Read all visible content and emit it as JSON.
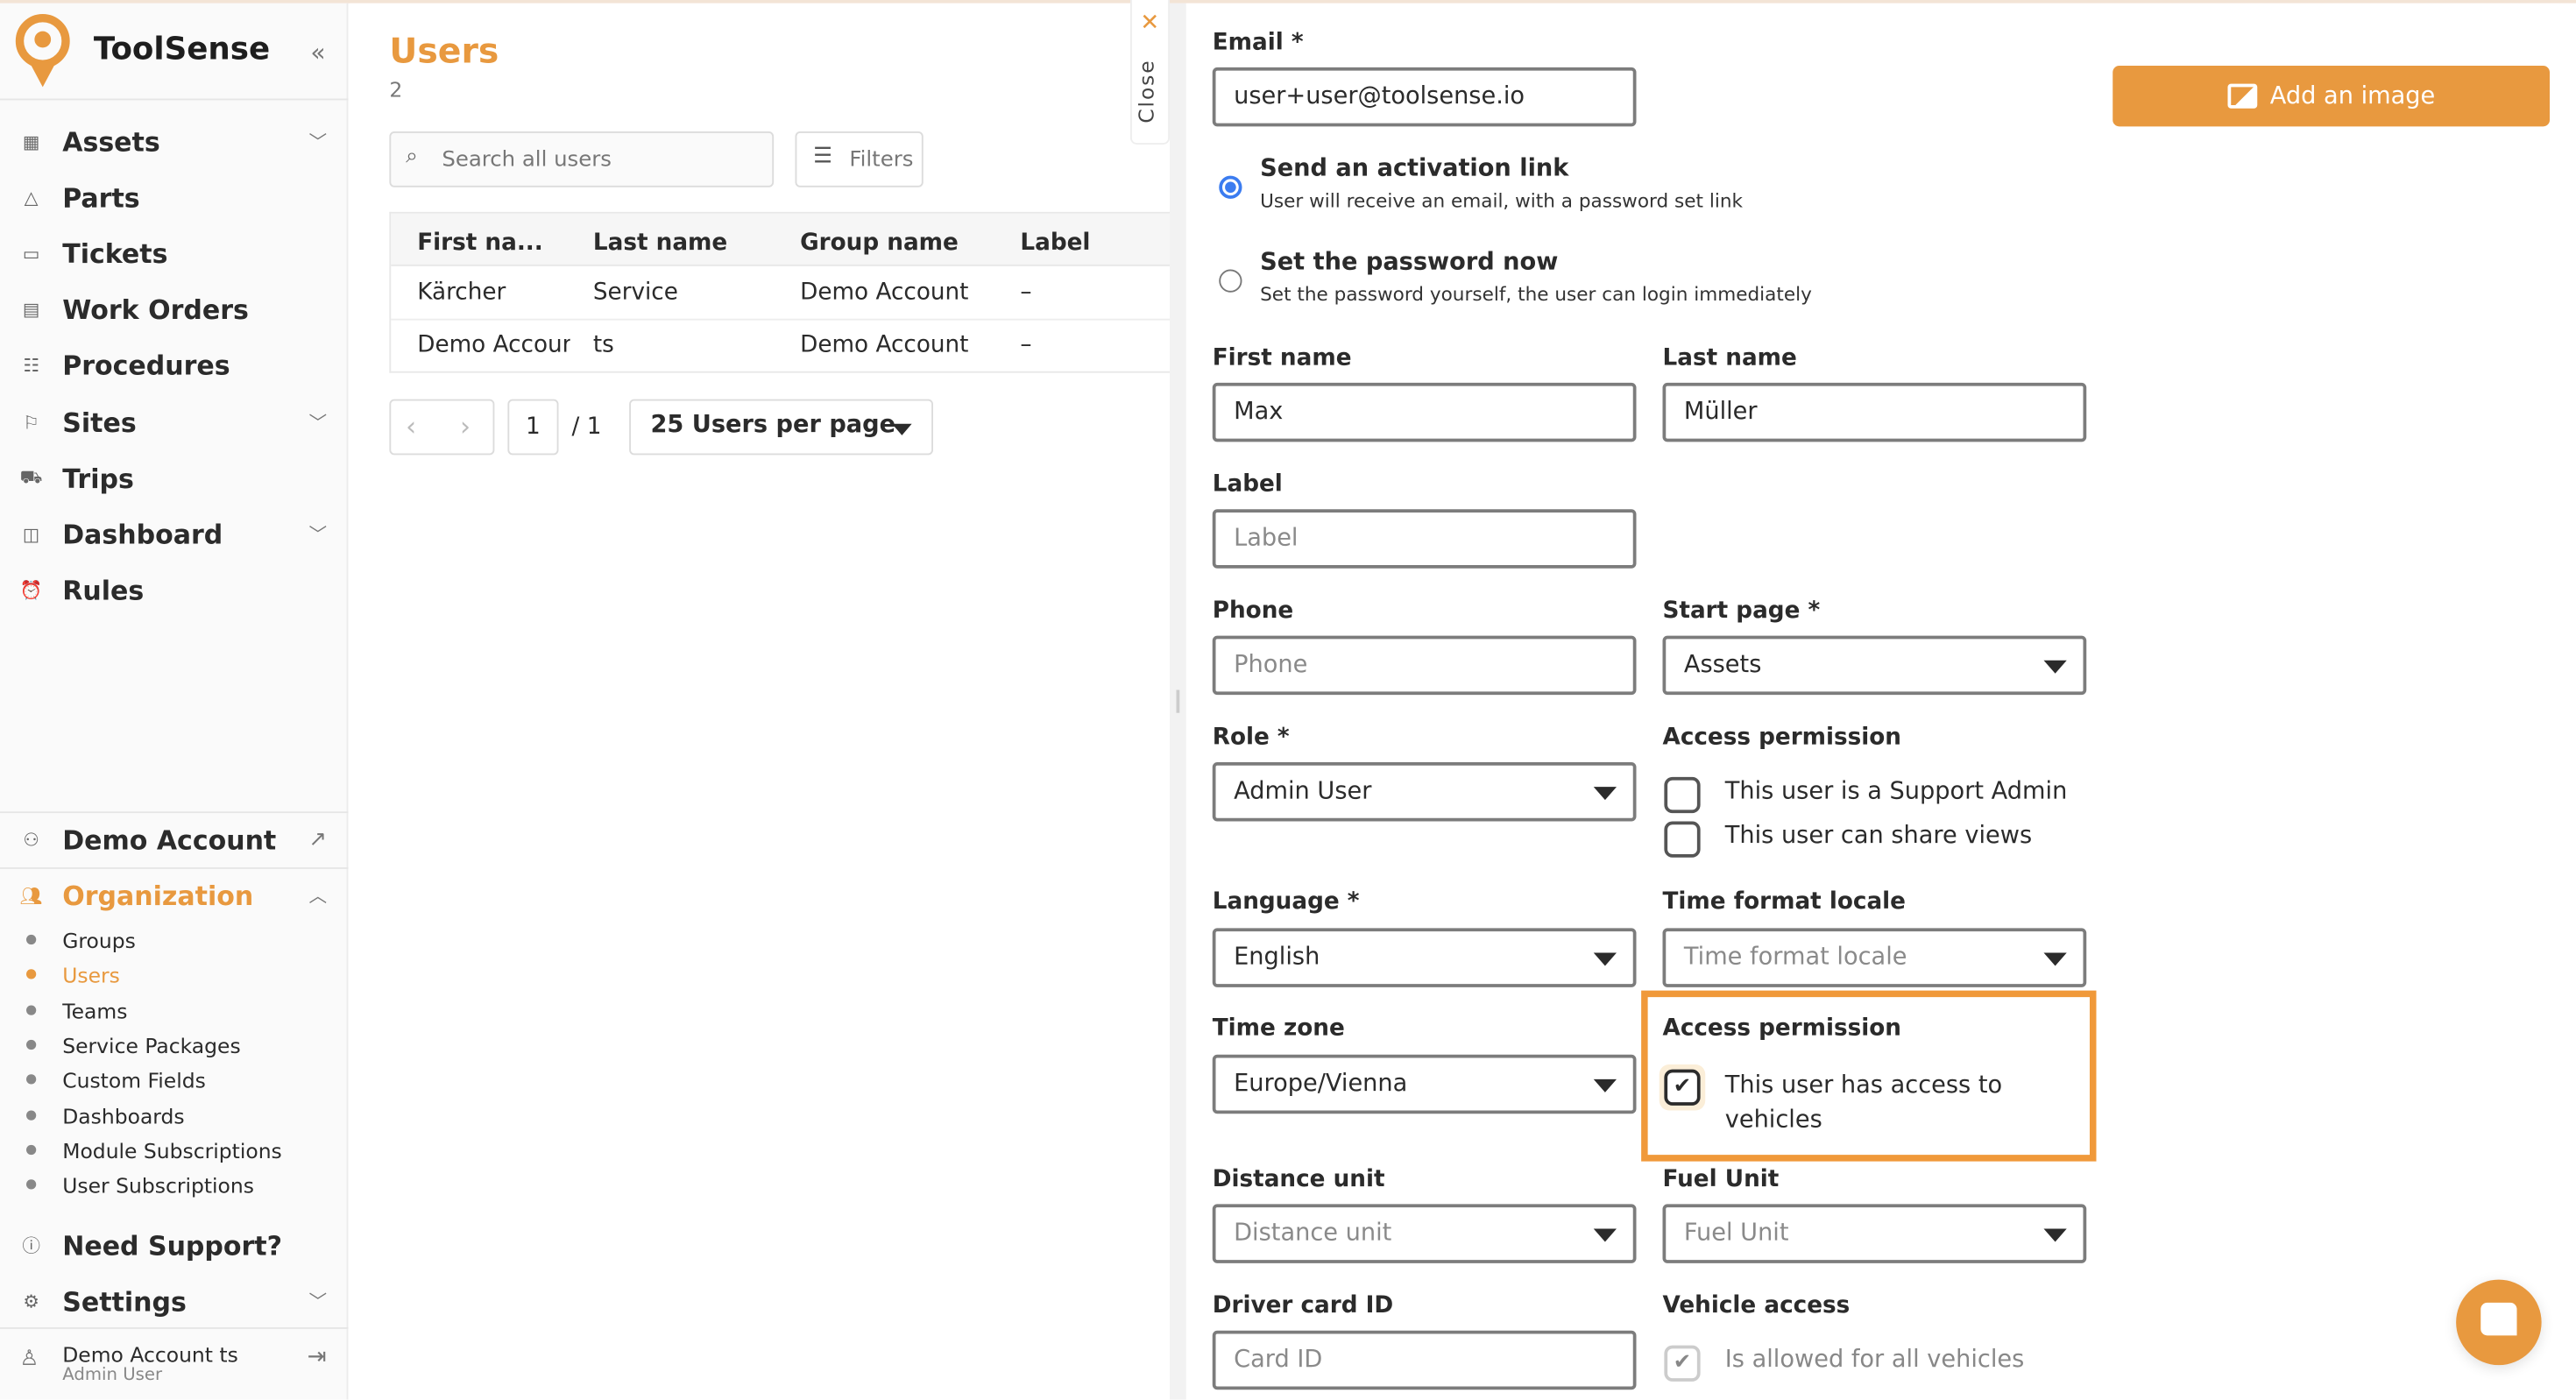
{
  "colors": {
    "accent": "#e8993f",
    "radio_selected": "#3b7cf0",
    "highlight_border": "#f0993a"
  },
  "sidebar": {
    "brand": "ToolSense",
    "collapse_icon": "double-chevron-left-icon",
    "items": [
      {
        "label": "Assets",
        "icon": "grid-icon",
        "expandable": true
      },
      {
        "label": "Parts",
        "icon": "parts-icon",
        "expandable": false
      },
      {
        "label": "Tickets",
        "icon": "ticket-icon",
        "expandable": false
      },
      {
        "label": "Work Orders",
        "icon": "briefcase-icon",
        "expandable": false
      },
      {
        "label": "Procedures",
        "icon": "checklist-icon",
        "expandable": false
      },
      {
        "label": "Sites",
        "icon": "flag-icon",
        "expandable": true
      },
      {
        "label": "Trips",
        "icon": "truck-icon",
        "expandable": false
      },
      {
        "label": "Dashboard",
        "icon": "dashboard-icon",
        "expandable": true
      },
      {
        "label": "Rules",
        "icon": "alarm-icon",
        "expandable": false
      }
    ],
    "account": {
      "label": "Demo Account"
    },
    "organization": {
      "label": "Organization",
      "sub_items": [
        "Groups",
        "Users",
        "Teams",
        "Service Packages",
        "Custom Fields",
        "Dashboards",
        "Module Subscriptions",
        "User Subscriptions"
      ],
      "active": "Users"
    },
    "support": "Need Support?",
    "settings": "Settings",
    "user": {
      "name": "Demo Account ts",
      "role": "Admin User"
    }
  },
  "users_list": {
    "title": "Users",
    "count": "2",
    "search_placeholder": "Search all users",
    "filters_label": "Filters",
    "columns": [
      "First na...",
      "Last name",
      "Group name",
      "Label"
    ],
    "rows": [
      [
        "Kärcher",
        "Service",
        "Demo Account",
        "–"
      ],
      [
        "Demo Account",
        "ts",
        "Demo Account",
        "–"
      ]
    ],
    "pagination": {
      "page": "1",
      "total": "/ 1",
      "per_page": "25 Users per page"
    },
    "close_label": "Close"
  },
  "form": {
    "email": {
      "label": "Email *",
      "value": "user+user@toolsense.io"
    },
    "add_image": "Add an image",
    "activation": {
      "option1": {
        "title": "Send an activation link",
        "desc": "User will receive an email, with a password set link",
        "selected": true
      },
      "option2": {
        "title": "Set the password now",
        "desc": "Set the password yourself, the user can login immediately",
        "selected": false
      }
    },
    "first_name": {
      "label": "First name",
      "value": "Max"
    },
    "last_name": {
      "label": "Last name",
      "value": "Müller"
    },
    "label_field": {
      "label": "Label",
      "placeholder": "Label"
    },
    "phone": {
      "label": "Phone",
      "placeholder": "Phone"
    },
    "start_page": {
      "label": "Start page *",
      "value": "Assets"
    },
    "role": {
      "label": "Role *",
      "value": "Admin User"
    },
    "access_permission": {
      "label": "Access permission",
      "support_admin": "This user is a Support Admin",
      "share_views": "This user can share views",
      "support_admin_checked": false,
      "share_views_checked": false
    },
    "language": {
      "label": "Language *",
      "value": "English"
    },
    "time_format": {
      "label": "Time format locale",
      "placeholder": "Time format locale"
    },
    "time_zone": {
      "label": "Time zone",
      "value": "Europe/Vienna"
    },
    "vehicle_permission": {
      "label": "Access permission",
      "text": "This user has access to vehicles",
      "checked": true
    },
    "distance_unit": {
      "label": "Distance unit",
      "placeholder": "Distance unit"
    },
    "fuel_unit": {
      "label": "Fuel Unit",
      "placeholder": "Fuel Unit"
    },
    "driver_card": {
      "label": "Driver card ID",
      "placeholder": "Card ID"
    },
    "vehicle_access": {
      "label": "Vehicle access",
      "text": "Is allowed for all vehicles",
      "checked": true
    }
  }
}
